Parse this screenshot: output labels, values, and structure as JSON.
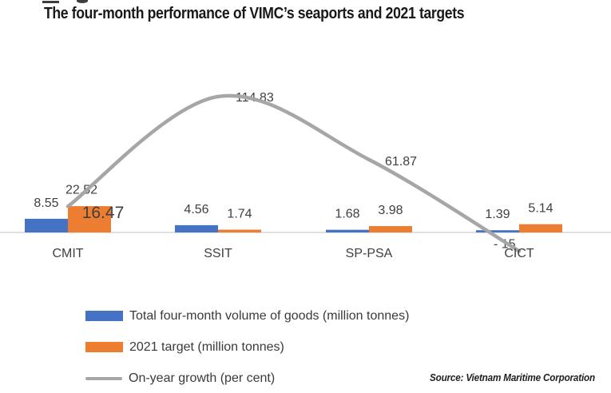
{
  "source_note": "Source: Vietnam Maritime Corporation",
  "chart_data": {
    "type": "bar",
    "subtype": "bar-line-combo",
    "title": "The four-month performance of VIMC’s seaports and 2021 targets",
    "categories": [
      "CMIT",
      "SSIT",
      "SP-PSA",
      "CICT"
    ],
    "series": [
      {
        "name": "Total four-month volume of goods (million tonnes)",
        "kind": "bar",
        "color": "#4472c4",
        "values": [
          8.55,
          4.56,
          1.68,
          1.39
        ],
        "labels": [
          "8.55",
          "4.56",
          "1.68",
          "1.39"
        ]
      },
      {
        "name": "2021 target (million tonnes)",
        "kind": "bar",
        "color": "#ed7d31",
        "values": [
          16.47,
          1.74,
          3.98,
          5.14
        ],
        "labels": [
          "16.47",
          "1.74",
          "3.98",
          "5.14"
        ]
      },
      {
        "name": "On-year growth (per cent)",
        "kind": "line",
        "color": "#a6a6a6",
        "values": [
          22.52,
          114.83,
          61.87,
          -15
        ],
        "labels": [
          "22.52",
          "114.83",
          "61.87",
          "- 15"
        ]
      }
    ],
    "legend_position": "bottom-left",
    "grid": false,
    "axes_visible": "x-baseline-only",
    "baseline_value": 0,
    "text_color": "#3f3f3f",
    "axis_color": "#d6d6d6"
  }
}
